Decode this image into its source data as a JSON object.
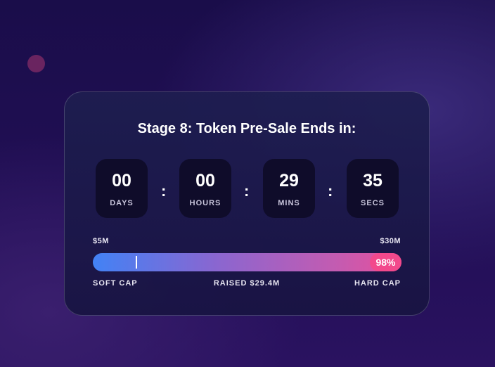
{
  "title": "Stage 8: Token Pre-Sale Ends in:",
  "countdown": [
    {
      "value": "00",
      "label": "DAYS"
    },
    {
      "value": "00",
      "label": "HOURS"
    },
    {
      "value": "29",
      "label": "MINS"
    },
    {
      "value": "35",
      "label": "SECS"
    }
  ],
  "separator": ":",
  "progress": {
    "min_label": "$5M",
    "max_label": "$30M",
    "percent_label": "98%",
    "percent": 98,
    "soft_cap_label": "SOFT CAP",
    "raised_label": "RAISED $29.4M",
    "hard_cap_label": "HARD CAP"
  },
  "colors": {
    "bar_start": "#4282f5",
    "bar_end": "#e84f9c",
    "badge": "#f2498c"
  }
}
